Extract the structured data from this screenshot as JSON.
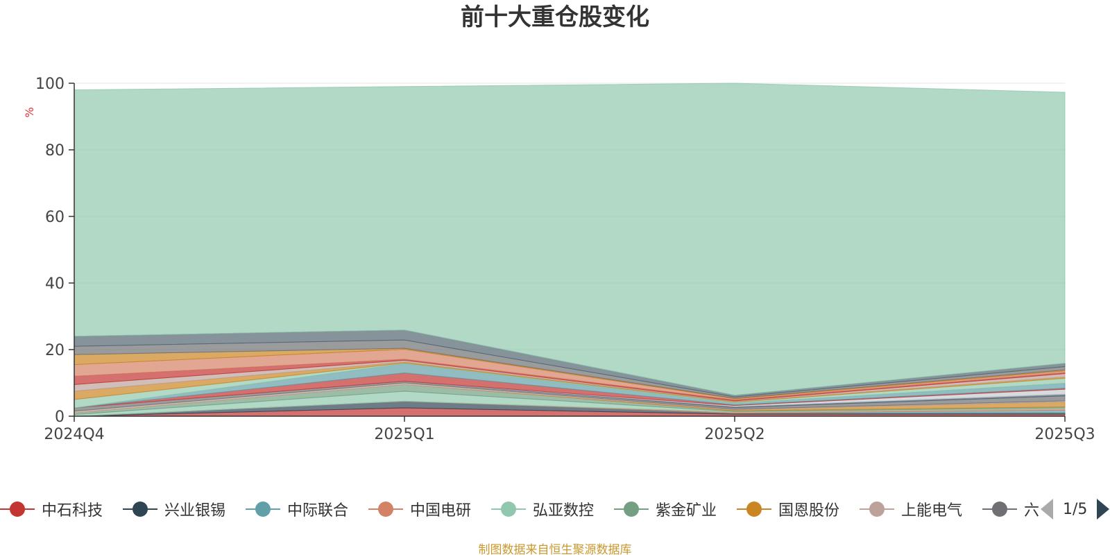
{
  "chart_data": {
    "type": "area",
    "stacked": true,
    "title": "前十大重仓股变化",
    "ylabel": "%",
    "ylim": [
      0,
      100
    ],
    "yticks": [
      0,
      20,
      40,
      60,
      80,
      100
    ],
    "grid": true,
    "legend_position": "bottom",
    "categories": [
      "2024Q4",
      "2025Q1",
      "2025Q2",
      "2025Q3"
    ],
    "series": [
      {
        "name": "中石科技",
        "color": "#c23531",
        "values": [
          0.0,
          2.5,
          0.6,
          0.6
        ]
      },
      {
        "name": "兴业银锡",
        "color": "#2f4554",
        "values": [
          0.0,
          2.0,
          0.3,
          0.4
        ]
      },
      {
        "name": "中际联合",
        "color": "#61a0a8",
        "values": [
          0.0,
          0.0,
          0.0,
          0.8
        ]
      },
      {
        "name": "中国电研",
        "color": "#d48265",
        "values": [
          0.0,
          0.0,
          0.3,
          0.4
        ]
      },
      {
        "name": "弘亚数控",
        "color": "#91c7ae",
        "values": [
          0.5,
          3.0,
          0.2,
          0.3
        ]
      },
      {
        "name": "紫金矿业",
        "color": "#749f83",
        "values": [
          0.5,
          2.0,
          0.2,
          0.3
        ]
      },
      {
        "name": "国恩股份",
        "color": "#ca8622",
        "values": [
          0.0,
          0.0,
          0.3,
          1.5
        ]
      },
      {
        "name": "上能电气",
        "color": "#bda29a",
        "values": [
          0.5,
          0.5,
          0.2,
          0.3
        ]
      },
      {
        "name": "",
        "color": "#6e7074",
        "values": [
          1.0,
          0.5,
          0.5,
          1.5
        ]
      },
      {
        "name": "",
        "color": "#546570",
        "values": [
          0.0,
          0.0,
          0.3,
          0.5
        ]
      },
      {
        "name": "",
        "color": "#c4ccd3",
        "values": [
          0.0,
          0.0,
          0.3,
          1.5
        ]
      },
      {
        "name": "",
        "color": "#c23531",
        "values": [
          0.0,
          2.5,
          0.2,
          0.3
        ]
      },
      {
        "name": "",
        "color": "#61a0a8",
        "values": [
          0.0,
          2.8,
          0.5,
          1.5
        ]
      },
      {
        "name": "",
        "color": "#91c7ae",
        "values": [
          2.5,
          0.2,
          0.3,
          1.5
        ]
      },
      {
        "name": "",
        "color": "#ca8622",
        "values": [
          2.5,
          0.3,
          0.2,
          0.4
        ]
      },
      {
        "name": "",
        "color": "#bda29a",
        "values": [
          2.0,
          0.5,
          0.2,
          1.0
        ]
      },
      {
        "name": "",
        "color": "#c23531",
        "values": [
          2.5,
          0.3,
          0.3,
          0.3
        ]
      },
      {
        "name": "",
        "color": "#d48265",
        "values": [
          3.5,
          3.0,
          0.3,
          0.5
        ]
      },
      {
        "name": "",
        "color": "#ca8622",
        "values": [
          3.0,
          0.3,
          0.2,
          0.3
        ]
      },
      {
        "name": "",
        "color": "#6e7074",
        "values": [
          2.5,
          2.5,
          0.4,
          1.0
        ]
      },
      {
        "name": "",
        "color": "#546570",
        "values": [
          3.0,
          3.0,
          0.5,
          1.0
        ]
      },
      {
        "name": "",
        "color": "#91c7ae",
        "values": [
          74.0,
          73.1,
          93.7,
          81.4
        ]
      }
    ],
    "source_note": "制图数据来自恒生聚源数据库"
  },
  "legend": {
    "items": [
      {
        "label": "中石科技",
        "color": "#c23531"
      },
      {
        "label": "兴业银锡",
        "color": "#2f4554"
      },
      {
        "label": "中际联合",
        "color": "#61a0a8"
      },
      {
        "label": "中国电研",
        "color": "#d48265"
      },
      {
        "label": "弘亚数控",
        "color": "#91c7ae"
      },
      {
        "label": "紫金矿业",
        "color": "#749f83"
      },
      {
        "label": "国恩股份",
        "color": "#ca8622"
      },
      {
        "label": "上能电气",
        "color": "#bda29a"
      },
      {
        "label": "六",
        "color": "#6e7074"
      }
    ],
    "page_text": "1/5"
  }
}
